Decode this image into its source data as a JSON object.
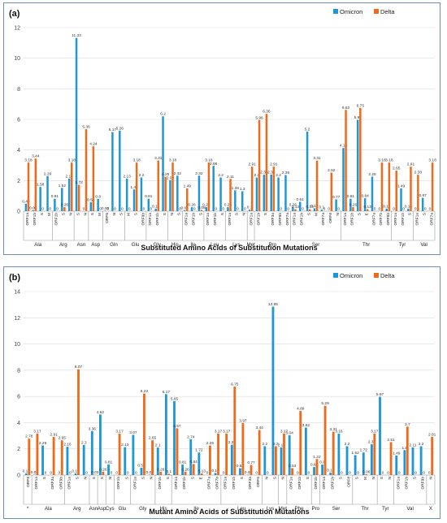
{
  "colors": {
    "omicron": "#1f97d4",
    "delta": "#f06a1c"
  },
  "chart_data": [
    {
      "type": "bar",
      "panel_label": "(a)",
      "xlabel": "Substituted Amino Acids of Substitution Mutations",
      "ylim": [
        0,
        12
      ],
      "yticks": [
        0,
        2,
        4,
        6,
        8,
        10,
        12
      ],
      "legend": [
        "Omicron",
        "Delta"
      ],
      "legend_position": "top-right",
      "groups": [
        {
          "name": "Ala",
          "bars": [
            {
              "sub": "ORF1a",
              "o": 0.49,
              "d": 3.18
            },
            {
              "sub": "ORF1b",
              "o": 0.06,
              "d": 3.44
            },
            {
              "sub": "S",
              "o": 1.58,
              "d": 0
            },
            {
              "sub": "M",
              "o": 2.29,
              "d": 0
            }
          ]
        },
        {
          "name": "Arg",
          "bars": [
            {
              "sub": "ORF1b",
              "o": 0.81,
              "d": 0
            },
            {
              "sub": "S",
              "o": 1.52,
              "d": 0.26
            },
            {
              "sub": "N",
              "o": 2.13,
              "d": 3.18
            }
          ]
        },
        {
          "name": "Asn",
          "bars": [
            {
              "sub": "S",
              "o": 11.33,
              "d": 1.72
            },
            {
              "sub": "N",
              "o": 0,
              "d": 5.36
            }
          ]
        },
        {
          "name": "Asp",
          "bars": [
            {
              "sub": "S",
              "o": 0.58,
              "d": 4.24
            },
            {
              "sub": "M",
              "o": 0.8,
              "d": 0
            }
          ]
        },
        {
          "name": "Gln",
          "bars": [
            {
              "sub": "ORF6",
              "o": 0.03,
              "d": 0
            },
            {
              "sub": "N",
              "o": 5.17,
              "d": 0
            },
            {
              "sub": "S",
              "o": 5.26,
              "d": 0
            }
          ]
        },
        {
          "name": "Glu",
          "bars": [
            {
              "sub": "M",
              "o": 2.13,
              "d": 0
            },
            {
              "sub": "S",
              "o": 1.42,
              "d": 3.18
            },
            {
              "sub": "ORF9b",
              "o": 2.2,
              "d": 0
            }
          ]
        },
        {
          "name": "Gly",
          "bars": [
            {
              "sub": "ORF1a",
              "o": 0.81,
              "d": 0
            },
            {
              "sub": "ORF1b",
              "o": 0.16,
              "d": 3.31
            },
            {
              "sub": "S",
              "o": 6.2,
              "d": 2.25
            }
          ]
        },
        {
          "name": "His",
          "bars": [
            {
              "sub": "N",
              "o": 2.03,
              "d": 3.18
            },
            {
              "sub": "S",
              "o": 2.32,
              "d": 0
            }
          ]
        },
        {
          "name": "Ile",
          "bars": [
            {
              "sub": "ORF1a",
              "o": 0.06,
              "d": 1.49
            },
            {
              "sub": "ORF1b",
              "o": 0.26,
              "d": 0
            },
            {
              "sub": "S",
              "o": 2.32,
              "d": 0.08
            }
          ]
        },
        {
          "name": "Leu",
          "bars": [
            {
              "sub": "ORF1a",
              "o": 0.26,
              "d": 3.18
            },
            {
              "sub": "ORF1b",
              "o": 2.96,
              "d": 0
            },
            {
              "sub": "S",
              "o": 2.2,
              "d": 0
            }
          ]
        },
        {
          "name": "Lys",
          "bars": [
            {
              "sub": "ORF1a",
              "o": 0.26,
              "d": 2.11
            },
            {
              "sub": "S",
              "o": 1.36,
              "d": 0
            },
            {
              "sub": "N",
              "o": 1.3,
              "d": 0
            }
          ]
        },
        {
          "name": "Met",
          "bars": [
            {
              "sub": "ORF1a",
              "o": 0.1,
              "d": 2.91
            }
          ]
        },
        {
          "name": "Pro",
          "bars": [
            {
              "sub": "ORF1b",
              "o": 2.2,
              "d": 5.96
            },
            {
              "sub": "S",
              "o": 2.38,
              "d": 6.36
            },
            {
              "sub": "ORF3a",
              "o": 2.39,
              "d": 2.91
            },
            {
              "sub": "ORF9b",
              "o": 2.2,
              "d": 0
            },
            {
              "sub": "ORF7a",
              "o": 2.36,
              "d": 0
            }
          ]
        },
        {
          "name": "Ser",
          "bars": [
            {
              "sub": "ORF1a",
              "o": 0.26,
              "d": 0.13
            },
            {
              "sub": "ORF1b",
              "o": 0.61,
              "d": 0
            },
            {
              "sub": "S",
              "o": 5.2,
              "d": 0.13
            },
            {
              "sub": "M",
              "o": 0.19,
              "d": 3.31
            },
            {
              "sub": "ORF7a",
              "o": 0.1,
              "d": 0
            },
            {
              "sub": "ORF8",
              "o": 0,
              "d": 2.52
            },
            {
              "sub": "N",
              "o": 0.77,
              "d": 0
            }
          ]
        },
        {
          "name": "Thr",
          "bars": [
            {
              "sub": "ORF1a",
              "o": 4.13,
              "d": 6.62
            },
            {
              "sub": "ORF1b",
              "o": 0.81,
              "d": 0.26
            },
            {
              "sub": "S",
              "o": 5.97,
              "d": 6.75
            },
            {
              "sub": "E",
              "o": 0.84,
              "d": 0.13
            },
            {
              "sub": "ORF7a",
              "o": 2.26,
              "d": 0
            },
            {
              "sub": "ORF7b",
              "o": 0,
              "d": 3.18
            },
            {
              "sub": "ORF9b",
              "o": 0.16,
              "d": 3.18
            }
          ]
        },
        {
          "name": "Tyr",
          "bars": [
            {
              "sub": "ORF1a",
              "o": 0,
              "d": 2.65
            },
            {
              "sub": "ORF1b",
              "o": 1.49,
              "d": 0
            },
            {
              "sub": "S",
              "o": 0.16,
              "d": 2.91
            }
          ]
        },
        {
          "name": "Val",
          "bars": [
            {
              "sub": "ORF1a",
              "o": 0,
              "d": 2.38
            },
            {
              "sub": "S",
              "o": 0.87,
              "d": 0
            },
            {
              "sub": "ORF7a",
              "o": 0,
              "d": 3.18
            }
          ]
        }
      ]
    },
    {
      "type": "bar",
      "panel_label": "(b)",
      "xlabel": "Mutant Amino Acids of Substitution Mutations",
      "ylim": [
        0,
        14
      ],
      "yticks": [
        0,
        2,
        4,
        6,
        8,
        10,
        12,
        14
      ],
      "legend": [
        "Omicron",
        "Delta"
      ],
      "legend_position": "top-right",
      "groups": [
        {
          "name": "*",
          "bars": [
            {
              "sub": "ORF8",
              "o": 0.13,
              "d": 2.78
            }
          ]
        },
        {
          "name": "Ala",
          "bars": [
            {
              "sub": "ORF1a",
              "o": 0.03,
              "d": 3.17
            },
            {
              "sub": "S",
              "o": 2.26,
              "d": 0
            },
            {
              "sub": "ORF3a",
              "o": 0,
              "d": 2.91
            },
            {
              "sub": "ORF9b",
              "o": 0,
              "d": 2.65
            }
          ]
        },
        {
          "name": "Arg",
          "bars": [
            {
              "sub": "ORF1a",
              "o": 2.16,
              "d": 0
            },
            {
              "sub": "S",
              "o": 0.13,
              "d": 8.07
            },
            {
              "sub": "N",
              "o": 2.3,
              "d": 0
            }
          ]
        },
        {
          "name": "Asn",
          "bars": [
            {
              "sub": "S",
              "o": 3.36,
              "d": 0.03
            }
          ]
        },
        {
          "name": "Asp",
          "bars": [
            {
              "sub": "S",
              "o": 4.62,
              "d": 0.26
            }
          ]
        },
        {
          "name": "Cys",
          "bars": [
            {
              "sub": "N",
              "o": 0.81,
              "d": 0
            }
          ]
        },
        {
          "name": "Glu",
          "bars": [
            {
              "sub": "ORF1b",
              "o": 0,
              "d": 3.17
            },
            {
              "sub": "S",
              "o": 2.13,
              "d": 0
            }
          ]
        },
        {
          "name": "Gly",
          "bars": [
            {
              "sub": "ORF1a",
              "o": 3.07,
              "d": 0
            },
            {
              "sub": "S",
              "o": 0.56,
              "d": 6.22
            },
            {
              "sub": "N",
              "o": 0.03,
              "d": 2.65
            }
          ]
        },
        {
          "name": "His",
          "bars": [
            {
              "sub": "ORF1b",
              "o": 2.1,
              "d": 0.26
            },
            {
              "sub": "S",
              "o": 6.17,
              "d": 0.1
            }
          ]
        },
        {
          "name": "Ile",
          "bars": [
            {
              "sub": "ORF1a",
              "o": 5.65,
              "d": 3.57
            },
            {
              "sub": "ORF1b",
              "o": 0.81,
              "d": 0.26
            },
            {
              "sub": "S",
              "o": 2.74,
              "d": 0.84
            },
            {
              "sub": "E",
              "o": 1.72,
              "d": 0.13
            },
            {
              "sub": "ORF7a",
              "o": 0,
              "d": 2.26
            },
            {
              "sub": "ORF7b",
              "o": 0.16,
              "d": 3.17
            }
          ]
        },
        {
          "name": "Leu",
          "bars": [
            {
              "sub": "ORF1a",
              "o": 0,
              "d": 3.17
            },
            {
              "sub": "ORF1b",
              "o": 2.32,
              "d": 6.75
            },
            {
              "sub": "S",
              "o": 0.52,
              "d": 3.97
            },
            {
              "sub": "ORF3a",
              "o": 0.03,
              "d": 0.77
            },
            {
              "sub": "ORF6",
              "o": 0,
              "d": 3.44
            }
          ]
        },
        {
          "name": "Lys",
          "bars": [
            {
              "sub": "N",
              "o": 2.2,
              "d": 0
            },
            {
              "sub": "S",
              "o": 12.85,
              "d": 2.2
            }
          ]
        },
        {
          "name": "Met",
          "bars": [
            {
              "sub": "N",
              "o": 2.11,
              "d": 3.17
            }
          ]
        },
        {
          "name": "Phe",
          "bars": [
            {
              "sub": "ORF1a",
              "o": 3.04,
              "d": 0.53
            },
            {
              "sub": "ORF1b",
              "o": 0,
              "d": 4.89
            },
            {
              "sub": "S",
              "o": 3.62,
              "d": 0
            }
          ]
        },
        {
          "name": "Pro",
          "bars": [
            {
              "sub": "ORF1b",
              "o": 0.61,
              "d": 1.22
            }
          ]
        },
        {
          "name": "Ser",
          "bars": [
            {
              "sub": "ORF1a",
              "o": 0.8,
              "d": 5.29
            },
            {
              "sub": "ORF1b",
              "o": 0.19,
              "d": 3.31
            },
            {
              "sub": "S",
              "o": 3.16,
              "d": 0
            },
            {
              "sub": "ORF8",
              "o": 2.2,
              "d": 0
            }
          ]
        },
        {
          "name": "Thr",
          "bars": [
            {
              "sub": "S",
              "o": 1.52,
              "d": 0
            },
            {
              "sub": "M",
              "o": 1.72,
              "d": 0.06
            },
            {
              "sub": "N",
              "o": 2.35,
              "d": 3.17
            }
          ]
        },
        {
          "name": "Tyr",
          "bars": [
            {
              "sub": "S",
              "o": 5.97,
              "d": 0
            },
            {
              "sub": "N",
              "o": 0,
              "d": 2.51
            }
          ]
        },
        {
          "name": "Val",
          "bars": [
            {
              "sub": "ORF1a",
              "o": 1.49,
              "d": 0
            },
            {
              "sub": "ORF1b",
              "o": 1.9,
              "d": 3.7
            },
            {
              "sub": "S",
              "o": 2.11,
              "d": 0
            },
            {
              "sub": "ORF9b",
              "o": 2.2,
              "d": 0
            }
          ]
        },
        {
          "name": "X",
          "bars": [
            {
              "sub": "N",
              "o": 0,
              "d": 2.91
            }
          ]
        }
      ]
    }
  ]
}
